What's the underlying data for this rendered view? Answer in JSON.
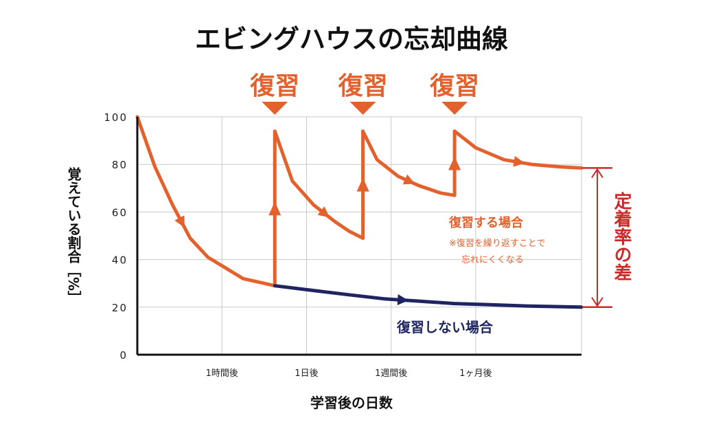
{
  "chart_data": {
    "type": "line",
    "title": "エビングハウスの忘却曲線",
    "xlabel": "学習後の日数",
    "ylabel": "覚えている割合［%］",
    "ylim": [
      0,
      100
    ],
    "yticks": [
      "100",
      "80",
      "60",
      "40",
      "20",
      "0"
    ],
    "ytick_values": [
      100,
      80,
      60,
      40,
      20,
      0
    ],
    "xticks": [
      "1時間後",
      "1日後",
      "1週間後",
      "1ヶ月後"
    ],
    "grid": true,
    "review_label": "復習",
    "review_markers": [
      1,
      2,
      3
    ],
    "series": [
      {
        "name": "復習する場合",
        "color": "#e2612d",
        "segments": [
          [
            [
              0,
              100
            ],
            [
              0.25,
              79
            ],
            [
              0.5,
              63
            ],
            [
              0.75,
              49
            ],
            [
              1,
              41
            ],
            [
              1.5,
              32
            ],
            [
              1.95,
              29
            ]
          ],
          [
            [
              1.95,
              94
            ],
            [
              2.2,
              73
            ],
            [
              2.5,
              63
            ],
            [
              2.8,
              56
            ],
            [
              3,
              52
            ],
            [
              3.2,
              49
            ]
          ],
          [
            [
              3.2,
              94
            ],
            [
              3.4,
              82
            ],
            [
              3.7,
              75
            ],
            [
              4,
              71
            ],
            [
              4.3,
              68
            ],
            [
              4.5,
              67
            ]
          ],
          [
            [
              4.5,
              94
            ],
            [
              4.8,
              87
            ],
            [
              5.2,
              82
            ],
            [
              5.6,
              80
            ],
            [
              6,
              79
            ],
            [
              6.3,
              78.5
            ]
          ]
        ],
        "jumps": [
          [
            1.95,
            29,
            94
          ],
          [
            3.2,
            49,
            94
          ],
          [
            4.5,
            67,
            94
          ]
        ],
        "annotation": [
          "※復習を繰り返すことで",
          "忘れにくくなる"
        ]
      },
      {
        "name": "復習しない場合",
        "color": "#1e2560",
        "segments": [
          [
            [
              1.95,
              29
            ],
            [
              2.5,
              27
            ],
            [
              3,
              25.2
            ],
            [
              3.5,
              23.5
            ],
            [
              4,
              22.5
            ],
            [
              4.5,
              21.5
            ],
            [
              5,
              21
            ],
            [
              5.5,
              20.5
            ],
            [
              6.3,
              20
            ]
          ]
        ]
      }
    ],
    "difference_label": "定着率の差",
    "difference_color": "#cc2a2a",
    "difference_range": [
      20,
      78.5
    ]
  }
}
